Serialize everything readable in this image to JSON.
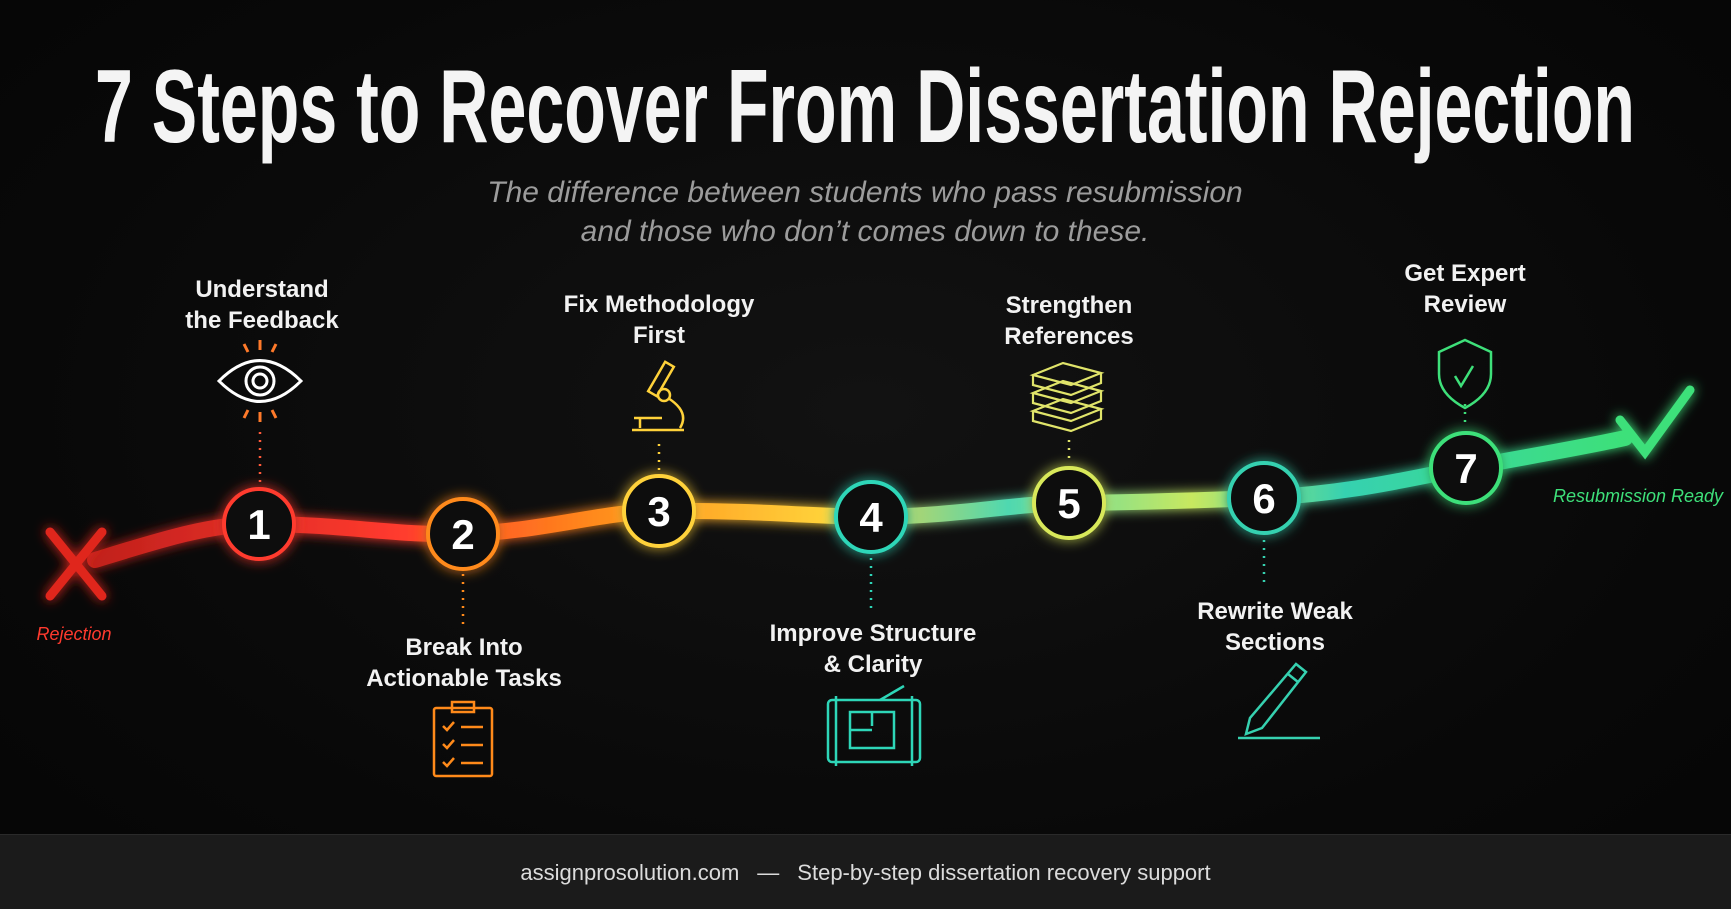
{
  "title": "7 Steps to Recover From Dissertation Rejection",
  "subtitle": [
    "The difference between students who pass resubmission",
    "and those who don’t comes down to these."
  ],
  "start_label": "Rejection",
  "end_label": "Resubmission Ready",
  "colors": {
    "start": "#ff3030",
    "end": "#3ee07a",
    "background": "#080808"
  },
  "steps": [
    {
      "number": "1",
      "lines": [
        "Understand",
        "the Feedback"
      ],
      "icon": "eye-icon",
      "color": "#ff3a2e"
    },
    {
      "number": "2",
      "lines": [
        "Break Into",
        "Actionable Tasks"
      ],
      "icon": "clipboard-checklist-icon",
      "color": "#ff8a1a"
    },
    {
      "number": "3",
      "lines": [
        "Fix Methodology",
        "First"
      ],
      "icon": "microscope-icon",
      "color": "#ffd23a"
    },
    {
      "number": "4",
      "lines": [
        "Improve Structure",
        "& Clarity"
      ],
      "icon": "blueprint-icon",
      "color": "#2ed6b8"
    },
    {
      "number": "5",
      "lines": [
        "Strengthen",
        "References"
      ],
      "icon": "books-icon",
      "color": "#d8e85a"
    },
    {
      "number": "6",
      "lines": [
        "Rewrite Weak",
        "Sections"
      ],
      "icon": "pencil-icon",
      "color": "#36d1b0"
    },
    {
      "number": "7",
      "lines": [
        "Get Expert",
        "Review"
      ],
      "icon": "shield-check-icon",
      "color": "#3ee07a"
    }
  ],
  "footer": {
    "site": "assignprosolution.com",
    "separator": "—",
    "tagline": "Step-by-step dissertation recovery support"
  }
}
